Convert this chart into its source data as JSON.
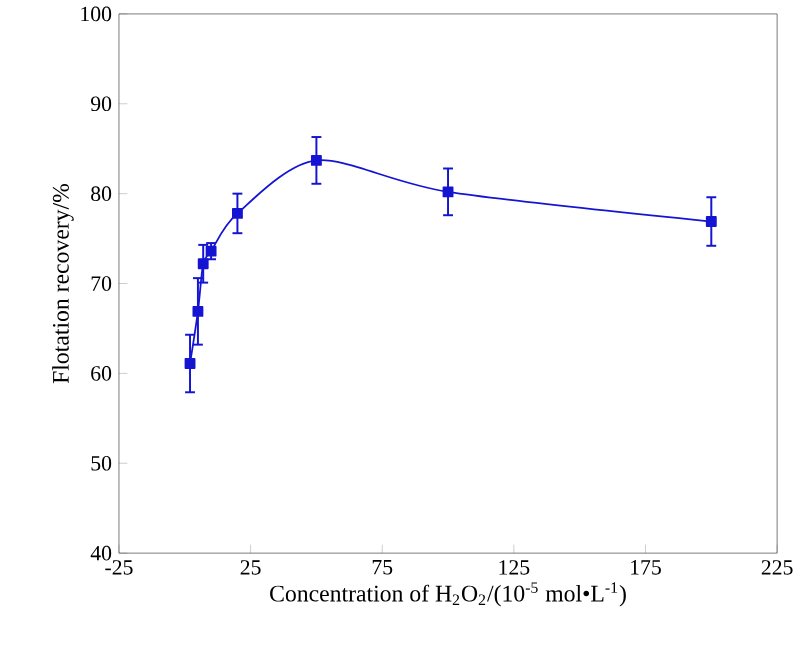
{
  "chart_data": {
    "type": "line",
    "xlabel": "Concentration of H$_{2}$O$_{2}$/(10$^{-5}$ mol•L$^{-1}$)",
    "ylabel": "Flotation recovery/%",
    "x": [
      2,
      5,
      7,
      10,
      20,
      50,
      100,
      200
    ],
    "series": [
      {
        "color": "#1414d2",
        "values": [
          61.1,
          66.9,
          72.2,
          73.6,
          77.8,
          83.7,
          80.2,
          76.9
        ],
        "errors": [
          3.2,
          3.7,
          2.1,
          0.9,
          2.2,
          2.6,
          2.6,
          2.7
        ]
      }
    ],
    "xlim": [
      -25,
      225
    ],
    "xticks": [
      -25,
      25,
      75,
      125,
      175,
      225
    ],
    "ylim": [
      40,
      100
    ],
    "yticks": [
      40,
      50,
      60,
      70,
      80,
      90,
      100
    ],
    "marker": "square",
    "line_style": "solid"
  }
}
